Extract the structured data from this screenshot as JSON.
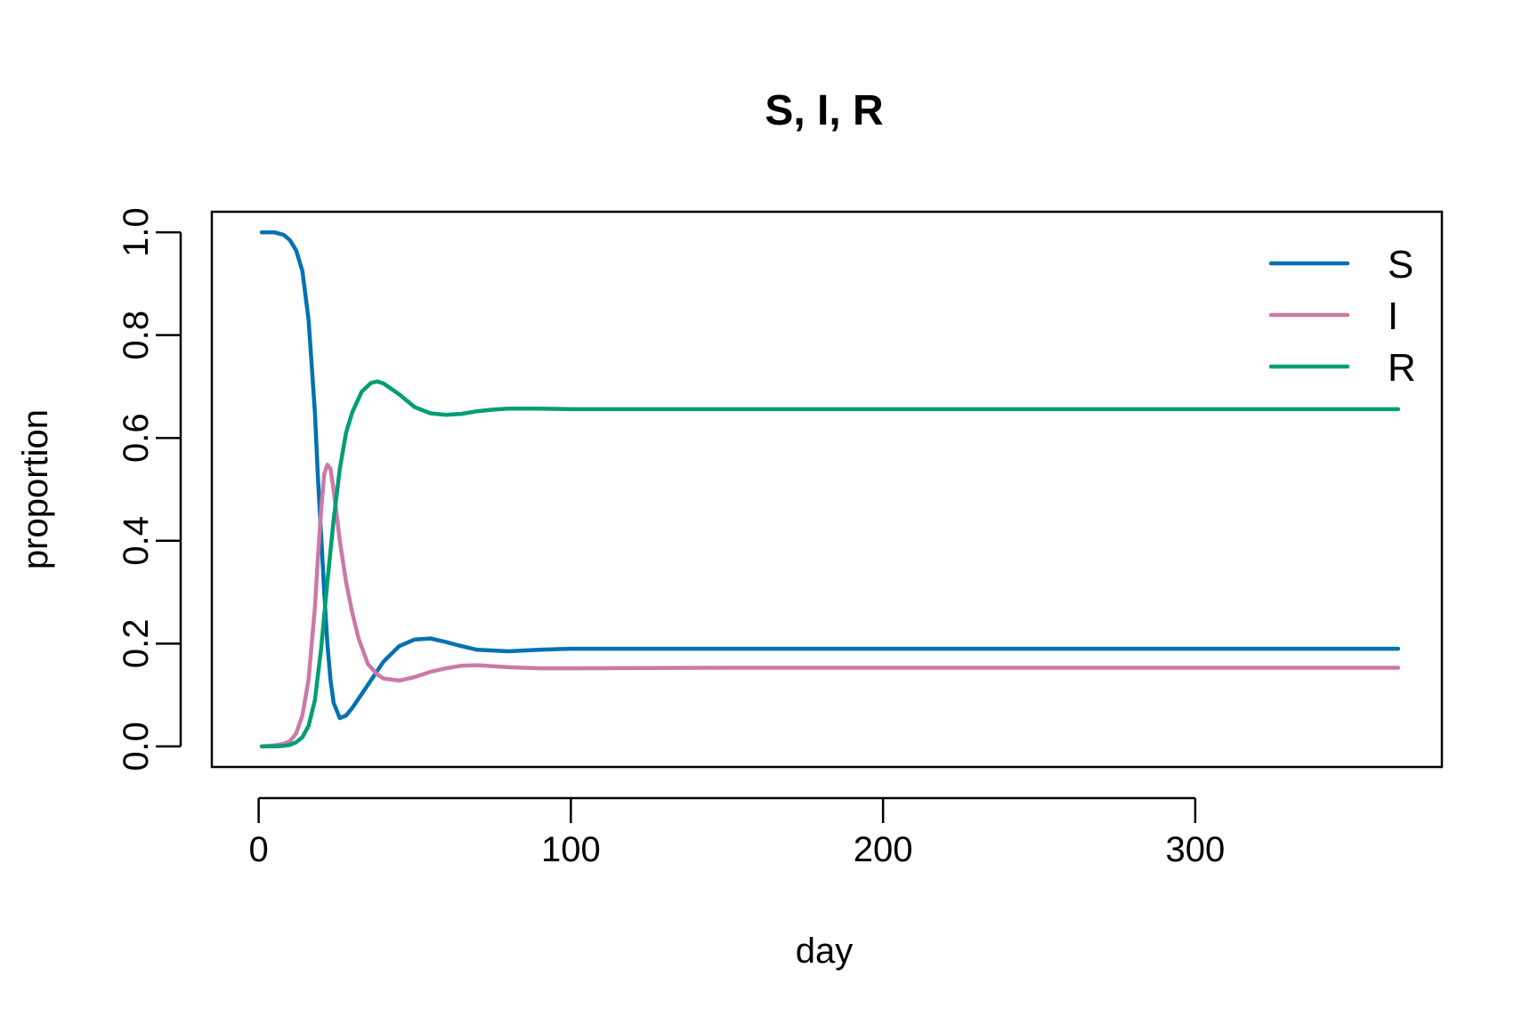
{
  "chart_data": {
    "type": "line",
    "title": "S, I, R",
    "xlabel": "day",
    "ylabel": "proportion",
    "xlim": [
      -15,
      379
    ],
    "ylim": [
      -0.04,
      1.04
    ],
    "x_ticks": [
      0,
      100,
      200,
      300
    ],
    "y_ticks": [
      0.0,
      0.2,
      0.4,
      0.6,
      0.8,
      1.0
    ],
    "x_tick_labels": [
      "0",
      "100",
      "200",
      "300"
    ],
    "y_tick_labels": [
      "0.0",
      "0.2",
      "0.4",
      "0.6",
      "0.8",
      "1.0"
    ],
    "grid": false,
    "legend_position": "top-right",
    "series": [
      {
        "name": "S",
        "color": "#0072B2",
        "x": [
          1,
          5,
          8,
          10,
          12,
          14,
          16,
          18,
          19,
          20,
          21,
          22,
          23,
          24,
          26,
          28,
          30,
          35,
          40,
          45,
          50,
          55,
          60,
          65,
          70,
          80,
          90,
          100,
          150,
          200,
          250,
          300,
          365
        ],
        "y": [
          1.0,
          1.0,
          0.995,
          0.985,
          0.965,
          0.925,
          0.83,
          0.65,
          0.52,
          0.41,
          0.3,
          0.2,
          0.13,
          0.085,
          0.055,
          0.06,
          0.075,
          0.12,
          0.165,
          0.195,
          0.208,
          0.21,
          0.203,
          0.195,
          0.188,
          0.185,
          0.188,
          0.19,
          0.19,
          0.19,
          0.19,
          0.19,
          0.19
        ]
      },
      {
        "name": "I",
        "color": "#CC79A7",
        "x": [
          1,
          5,
          8,
          10,
          12,
          14,
          16,
          18,
          19,
          20,
          21,
          22,
          23,
          24,
          25,
          26,
          28,
          30,
          32,
          35,
          38,
          40,
          45,
          50,
          55,
          60,
          65,
          70,
          75,
          80,
          90,
          100,
          150,
          200,
          250,
          300,
          365
        ],
        "y": [
          0.0,
          0.002,
          0.005,
          0.01,
          0.025,
          0.06,
          0.13,
          0.27,
          0.37,
          0.46,
          0.53,
          0.548,
          0.54,
          0.5,
          0.45,
          0.4,
          0.32,
          0.26,
          0.21,
          0.16,
          0.14,
          0.132,
          0.128,
          0.135,
          0.145,
          0.152,
          0.157,
          0.158,
          0.156,
          0.154,
          0.152,
          0.152,
          0.153,
          0.153,
          0.153,
          0.153,
          0.153
        ]
      },
      {
        "name": "R",
        "color": "#009E73",
        "x": [
          1,
          5,
          8,
          10,
          12,
          14,
          16,
          18,
          20,
          22,
          24,
          26,
          28,
          30,
          33,
          36,
          38,
          40,
          45,
          50,
          55,
          60,
          65,
          70,
          75,
          80,
          90,
          100,
          150,
          200,
          250,
          300,
          365
        ],
        "y": [
          0.0,
          0.0,
          0.001,
          0.003,
          0.008,
          0.018,
          0.04,
          0.09,
          0.19,
          0.32,
          0.44,
          0.54,
          0.61,
          0.65,
          0.69,
          0.707,
          0.71,
          0.706,
          0.685,
          0.66,
          0.648,
          0.645,
          0.647,
          0.652,
          0.655,
          0.657,
          0.657,
          0.656,
          0.656,
          0.656,
          0.656,
          0.656,
          0.656
        ]
      }
    ]
  }
}
